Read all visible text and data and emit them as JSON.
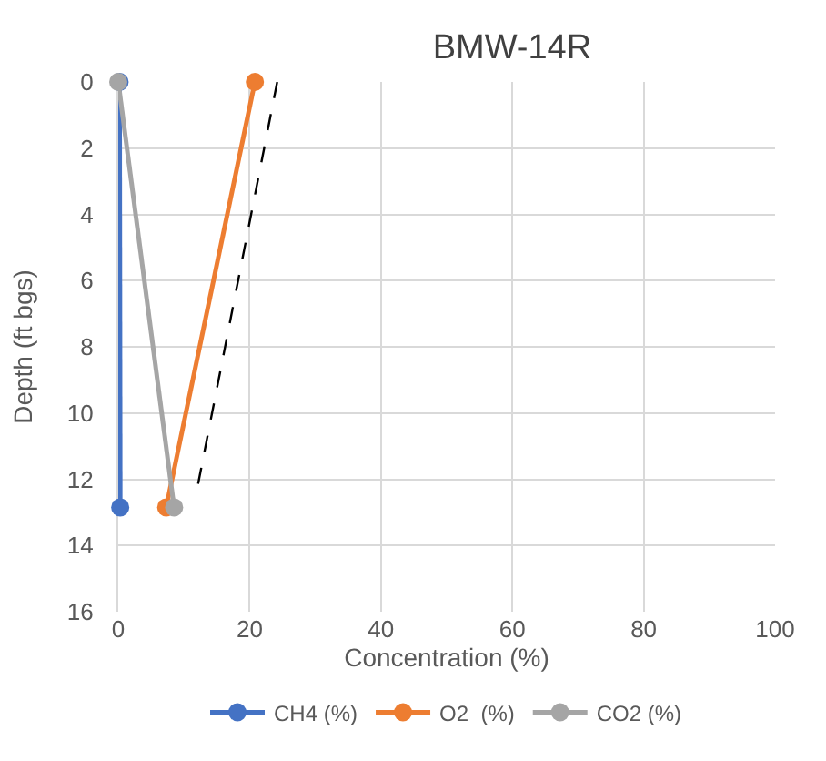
{
  "chart_data": {
    "type": "line",
    "title": "BMW-14R",
    "xlabel": "Concentration (%)",
    "ylabel": "Depth (ft bgs)",
    "xlim": [
      0,
      100
    ],
    "xticks": [
      0,
      20,
      40,
      60,
      80,
      100
    ],
    "ylim": [
      16,
      0
    ],
    "yticks": [
      0,
      2,
      4,
      6,
      8,
      10,
      12,
      14,
      16
    ],
    "grid": true,
    "legend": "bottom",
    "marker": "circle",
    "line_style": "solid",
    "series": [
      {
        "name": "CH4 (%)",
        "color": "#4472c4",
        "x": [
          0.2,
          0.3
        ],
        "values": [
          0,
          12.85
        ]
      },
      {
        "name": "O2  (%)",
        "color": "#ed7d31",
        "x": [
          20.8,
          7.3
        ],
        "values": [
          0,
          12.85
        ]
      },
      {
        "name": "CO2 (%)",
        "color": "#a5a5a5",
        "x": [
          0,
          8.5
        ],
        "values": [
          0,
          12.85
        ]
      },
      {
        "color": "#000000",
        "x": [
          24.2,
          12.0
        ],
        "values": [
          0,
          12.3
        ],
        "marker": "none",
        "line_style": "dashed"
      }
    ]
  }
}
